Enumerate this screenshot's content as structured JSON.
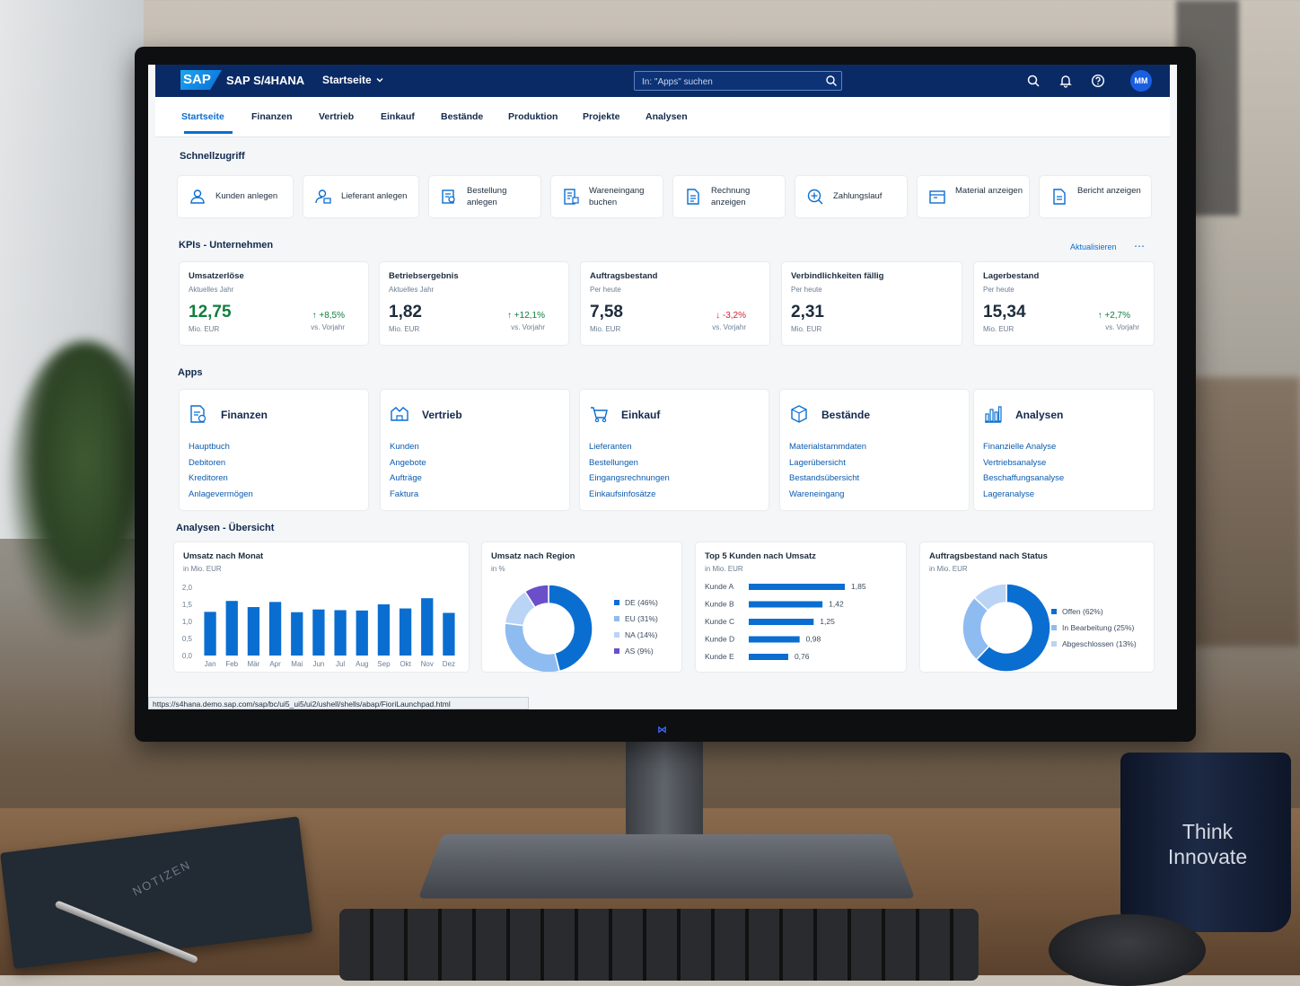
{
  "shell": {
    "logo": "SAP",
    "product": "SAP S/4HANA",
    "home_menu": "Startseite",
    "search_placeholder": "In: \"Apps\" suchen",
    "avatar_initials": "MM"
  },
  "tabs": [
    "Startseite",
    "Finanzen",
    "Vertrieb",
    "Einkauf",
    "Bestände",
    "Produktion",
    "Projekte",
    "Analysen"
  ],
  "quick_access": {
    "title": "Schnellzugriff",
    "items": [
      {
        "label": "Kunden anlegen",
        "icon": "user-icon"
      },
      {
        "label": "Lieferant anlegen",
        "icon": "supplier-icon"
      },
      {
        "label": "Bestellung anlegen",
        "icon": "purchase-order-icon"
      },
      {
        "label": "Wareneingang buchen",
        "icon": "goods-receipt-icon"
      },
      {
        "label": "Rechnung anzeigen",
        "icon": "invoice-icon"
      },
      {
        "label": "Zahlungslauf",
        "icon": "payment-run-icon"
      },
      {
        "label": "Material anzeigen",
        "icon": "material-icon"
      },
      {
        "label": "Bericht anzeigen",
        "icon": "report-icon"
      }
    ]
  },
  "kpis": {
    "title": "KPIs - Unternehmen",
    "refresh": "Aktualisieren",
    "cards": [
      {
        "title": "Umsatzerlöse",
        "subtitle": "Aktuelles Jahr",
        "value": "12,75",
        "unit": "Mio. EUR",
        "delta": "+8,5%",
        "trend": "up",
        "vs": "vs. Vorjahr"
      },
      {
        "title": "Betriebsergebnis",
        "subtitle": "Aktuelles Jahr",
        "value": "1,82",
        "unit": "Mio. EUR",
        "delta": "+12,1%",
        "trend": "up",
        "vs": "vs. Vorjahr"
      },
      {
        "title": "Auftragsbestand",
        "subtitle": "Per heute",
        "value": "7,58",
        "unit": "Mio. EUR",
        "delta": "-3,2%",
        "trend": "down",
        "vs": "vs. Vorjahr"
      },
      {
        "title": "Verbindlichkeiten fällig",
        "subtitle": "Per heute",
        "value": "2,31",
        "unit": "Mio. EUR",
        "delta": "",
        "trend": "none",
        "vs": ""
      },
      {
        "title": "Lagerbestand",
        "subtitle": "Per heute",
        "value": "15,34",
        "unit": "Mio. EUR",
        "delta": "+2,7%",
        "trend": "up",
        "vs": "vs. Vorjahr"
      }
    ]
  },
  "apps": {
    "title": "Apps",
    "groups": [
      {
        "title": "Finanzen",
        "icon": "finance-icon",
        "links": [
          "Hauptbuch",
          "Debitoren",
          "Kreditoren",
          "Anlagevermögen"
        ]
      },
      {
        "title": "Vertrieb",
        "icon": "sales-icon",
        "links": [
          "Kunden",
          "Angebote",
          "Aufträge",
          "Faktura"
        ]
      },
      {
        "title": "Einkauf",
        "icon": "cart-icon",
        "links": [
          "Lieferanten",
          "Bestellungen",
          "Eingangsrechnungen",
          "Einkaufsinfosätze"
        ]
      },
      {
        "title": "Bestände",
        "icon": "box-icon",
        "links": [
          "Materialstammdaten",
          "Lagerübersicht",
          "Bestandsübersicht",
          "Wareneingang"
        ]
      },
      {
        "title": "Analysen",
        "icon": "bar-chart-icon",
        "links": [
          "Finanzielle Analyse",
          "Vertriebsanalyse",
          "Beschaffungsanalyse",
          "Lageranalyse"
        ]
      }
    ]
  },
  "analytics": {
    "title": "Analysen - Übersicht"
  },
  "chart_data": [
    {
      "type": "bar",
      "title": "Umsatz nach Monat",
      "subtitle": "in Mio. EUR",
      "categories": [
        "Jan",
        "Feb",
        "Mär",
        "Apr",
        "Mai",
        "Jun",
        "Jul",
        "Aug",
        "Sep",
        "Okt",
        "Nov",
        "Dez"
      ],
      "values": [
        1.28,
        1.6,
        1.42,
        1.57,
        1.27,
        1.35,
        1.33,
        1.32,
        1.5,
        1.38,
        1.68,
        1.25
      ],
      "yticks": [
        "2,0",
        "1,5",
        "1,0",
        "0,5",
        "0,0"
      ],
      "ylim": [
        0,
        2.0
      ],
      "color": "#0a6ed1"
    },
    {
      "type": "pie",
      "title": "Umsatz nach Region",
      "subtitle": "in %",
      "labels": [
        "DE (46%)",
        "EU (31%)",
        "NA (14%)",
        "AS (9%)"
      ],
      "values": [
        46,
        31,
        14,
        9
      ],
      "colors": [
        "#0a6ed1",
        "#8fbcf0",
        "#b9d4f5",
        "#6a4fc9"
      ]
    },
    {
      "type": "bar",
      "orientation": "horizontal",
      "title": "Top 5 Kunden nach Umsatz",
      "subtitle": "in Mio. EUR",
      "categories": [
        "Kunde A",
        "Kunde B",
        "Kunde C",
        "Kunde D",
        "Kunde E"
      ],
      "values": [
        1.85,
        1.42,
        1.25,
        0.98,
        0.76
      ],
      "value_labels": [
        "1,85",
        "1,42",
        "1,25",
        "0,98",
        "0,76"
      ],
      "color": "#0a6ed1"
    },
    {
      "type": "pie",
      "title": "Auftragsbestand nach Status",
      "subtitle": "in Mio. EUR",
      "labels": [
        "Offen (62%)",
        "In Bearbeitung (25%)",
        "Abgeschlossen (13%)"
      ],
      "values": [
        62,
        25,
        13
      ],
      "colors": [
        "#0a6ed1",
        "#8fbcf0",
        "#b9d4f5"
      ]
    }
  ],
  "status_url": "https://s4hana.demo.sap.com/sap/bc/ui5_ui5/ui2/ushell/shells/abap/FioriLaunchpad.html",
  "mug_text": "Think Innovate",
  "notebook_label": "NOTIZEN"
}
